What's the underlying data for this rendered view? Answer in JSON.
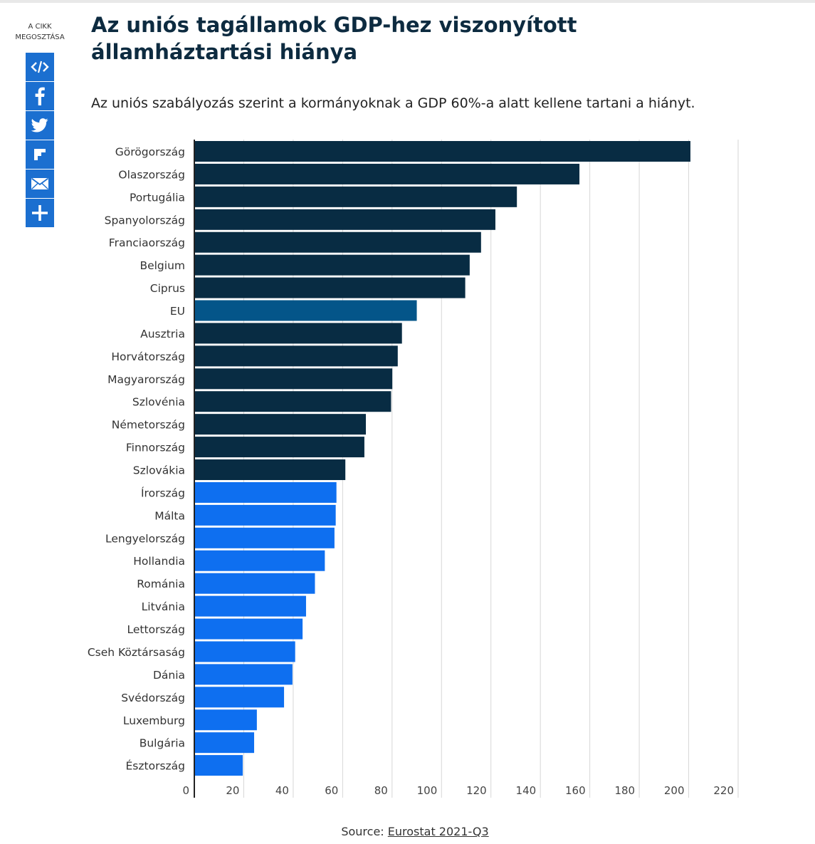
{
  "share": {
    "label_line1": "A CIKK",
    "label_line2": "MEGOSZTÁSA",
    "buttons": [
      {
        "icon": "embed-icon",
        "name": "embed-share-button"
      },
      {
        "icon": "facebook-icon",
        "name": "facebook-share-button"
      },
      {
        "icon": "twitter-icon",
        "name": "twitter-share-button"
      },
      {
        "icon": "flipboard-icon",
        "name": "flipboard-share-button"
      },
      {
        "icon": "email-icon",
        "name": "email-share-button"
      },
      {
        "icon": "plus-icon",
        "name": "more-share-button"
      }
    ],
    "color": "#1b6fd0"
  },
  "chart_data": {
    "type": "bar",
    "orientation": "horizontal",
    "title": "Az uniós tagállamok GDP-hez viszonyított államháztartási hiánya",
    "subtitle": "Az uniós szabályozás szerint a kormányoknak a GDP 60%-a alatt kellene tartani a hiányt.",
    "categories": [
      "Görögország",
      "Olaszország",
      "Portugália",
      "Spanyolország",
      "Franciaország",
      "Belgium",
      "Ciprus",
      "EU",
      "Ausztria",
      "Horvátország",
      "Magyarország",
      "Szlovénia",
      "Németország",
      "Finnország",
      "Szlovákia",
      "Írország",
      "Málta",
      "Lengyelország",
      "Hollandia",
      "Románia",
      "Litvánia",
      "Lettország",
      "Cseh Köztársaság",
      "Dánia",
      "Svédország",
      "Luxemburg",
      "Bulgária",
      "Észtország"
    ],
    "values": [
      200.7,
      155.8,
      130.5,
      121.8,
      116.0,
      111.4,
      109.6,
      90.0,
      84.0,
      82.3,
      80.1,
      79.6,
      69.4,
      68.8,
      61.1,
      57.5,
      57.2,
      56.7,
      52.8,
      48.8,
      45.2,
      43.8,
      40.8,
      39.7,
      36.3,
      25.3,
      24.2,
      19.6
    ],
    "colors": [
      "#082c43",
      "#082c43",
      "#082c43",
      "#082c43",
      "#082c43",
      "#082c43",
      "#082c43",
      "#045589",
      "#082c43",
      "#082c43",
      "#082c43",
      "#082c43",
      "#082c43",
      "#082c43",
      "#082c43",
      "#0e6ff0",
      "#0e6ff0",
      "#0e6ff0",
      "#0e6ff0",
      "#0e6ff0",
      "#0e6ff0",
      "#0e6ff0",
      "#0e6ff0",
      "#0e6ff0",
      "#0e6ff0",
      "#0e6ff0",
      "#0e6ff0",
      "#0e6ff0"
    ],
    "xlim": [
      0,
      220
    ],
    "xticks": [
      0,
      20,
      40,
      60,
      80,
      100,
      120,
      140,
      160,
      180,
      200,
      220
    ],
    "grid": true
  },
  "source": {
    "prefix": "Source: ",
    "link": "Eurostat 2021-Q3"
  }
}
